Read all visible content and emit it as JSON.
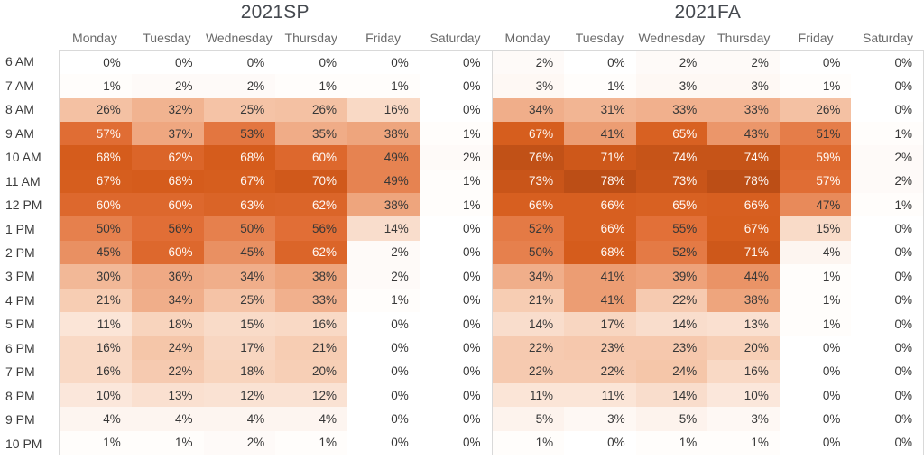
{
  "style": {
    "heat_stops": [
      [
        0,
        "#FFFFFF"
      ],
      [
        20,
        "#F7CFB6"
      ],
      [
        40,
        "#EDA077"
      ],
      [
        55,
        "#E27038"
      ],
      [
        68,
        "#D55C1C"
      ],
      [
        78,
        "#BC4E16"
      ]
    ],
    "white_text_threshold": 57,
    "cell_text_dark": "#373737",
    "cell_text_light": "#FFF9F5",
    "grid_border": "#D9D9D9",
    "day_header_text": "#6A6A6A",
    "title_text": "#45494F",
    "hour_label_text": "#3C3C3C"
  },
  "hours": [
    "6 AM",
    "7 AM",
    "8 AM",
    "9 AM",
    "10 AM",
    "11 AM",
    "12 PM",
    "1 PM",
    "2 PM",
    "3 PM",
    "4 PM",
    "5 PM",
    "6 PM",
    "7 PM",
    "8 PM",
    "9 PM",
    "10 PM"
  ],
  "chart_data": [
    {
      "type": "heatmap",
      "title": "2021SP",
      "x_labels": [
        "Monday",
        "Tuesday",
        "Wednesday",
        "Thursday",
        "Friday",
        "Saturday"
      ],
      "y_labels": [
        "6 AM",
        "7 AM",
        "8 AM",
        "9 AM",
        "10 AM",
        "11 AM",
        "12 PM",
        "1 PM",
        "2 PM",
        "3 PM",
        "4 PM",
        "5 PM",
        "6 PM",
        "7 PM",
        "8 PM",
        "9 PM",
        "10 PM"
      ],
      "unit": "%",
      "color_scale": {
        "min": 0,
        "max": 78,
        "low_color": "#FFFFFF",
        "high_color": "#BC4E16"
      },
      "values_percent": [
        [
          0,
          0,
          0,
          0,
          0,
          0
        ],
        [
          1,
          2,
          2,
          1,
          1,
          0
        ],
        [
          26,
          32,
          25,
          26,
          16,
          0
        ],
        [
          57,
          37,
          53,
          35,
          38,
          1
        ],
        [
          68,
          62,
          68,
          60,
          49,
          2
        ],
        [
          67,
          68,
          67,
          70,
          49,
          1
        ],
        [
          60,
          60,
          63,
          62,
          38,
          1
        ],
        [
          50,
          56,
          50,
          56,
          14,
          0
        ],
        [
          45,
          60,
          45,
          62,
          2,
          0
        ],
        [
          30,
          36,
          34,
          38,
          2,
          0
        ],
        [
          21,
          34,
          25,
          33,
          1,
          0
        ],
        [
          11,
          18,
          15,
          16,
          0,
          0
        ],
        [
          16,
          24,
          17,
          21,
          0,
          0
        ],
        [
          16,
          22,
          18,
          20,
          0,
          0
        ],
        [
          10,
          13,
          12,
          12,
          0,
          0
        ],
        [
          4,
          4,
          4,
          4,
          0,
          0
        ],
        [
          1,
          1,
          2,
          1,
          0,
          0
        ]
      ]
    },
    {
      "type": "heatmap",
      "title": "2021FA",
      "x_labels": [
        "Monday",
        "Tuesday",
        "Wednesday",
        "Thursday",
        "Friday",
        "Saturday"
      ],
      "y_labels": [
        "6 AM",
        "7 AM",
        "8 AM",
        "9 AM",
        "10 AM",
        "11 AM",
        "12 PM",
        "1 PM",
        "2 PM",
        "3 PM",
        "4 PM",
        "5 PM",
        "6 PM",
        "7 PM",
        "8 PM",
        "9 PM",
        "10 PM"
      ],
      "unit": "%",
      "color_scale": {
        "min": 0,
        "max": 78,
        "low_color": "#FFFFFF",
        "high_color": "#BC4E16"
      },
      "values_percent": [
        [
          2,
          0,
          2,
          2,
          0,
          0
        ],
        [
          3,
          1,
          3,
          3,
          1,
          0
        ],
        [
          34,
          31,
          33,
          33,
          26,
          0
        ],
        [
          67,
          41,
          65,
          43,
          51,
          1
        ],
        [
          76,
          71,
          74,
          74,
          59,
          2
        ],
        [
          73,
          78,
          73,
          78,
          57,
          2
        ],
        [
          66,
          66,
          65,
          66,
          47,
          1
        ],
        [
          52,
          66,
          55,
          67,
          15,
          0
        ],
        [
          50,
          68,
          52,
          71,
          4,
          0
        ],
        [
          34,
          41,
          39,
          44,
          1,
          0
        ],
        [
          21,
          41,
          22,
          38,
          1,
          0
        ],
        [
          14,
          17,
          14,
          13,
          1,
          0
        ],
        [
          22,
          23,
          23,
          20,
          0,
          0
        ],
        [
          22,
          22,
          24,
          16,
          0,
          0
        ],
        [
          11,
          11,
          14,
          10,
          0,
          0
        ],
        [
          5,
          3,
          5,
          3,
          0,
          0
        ],
        [
          1,
          0,
          1,
          1,
          0,
          0
        ]
      ]
    }
  ]
}
